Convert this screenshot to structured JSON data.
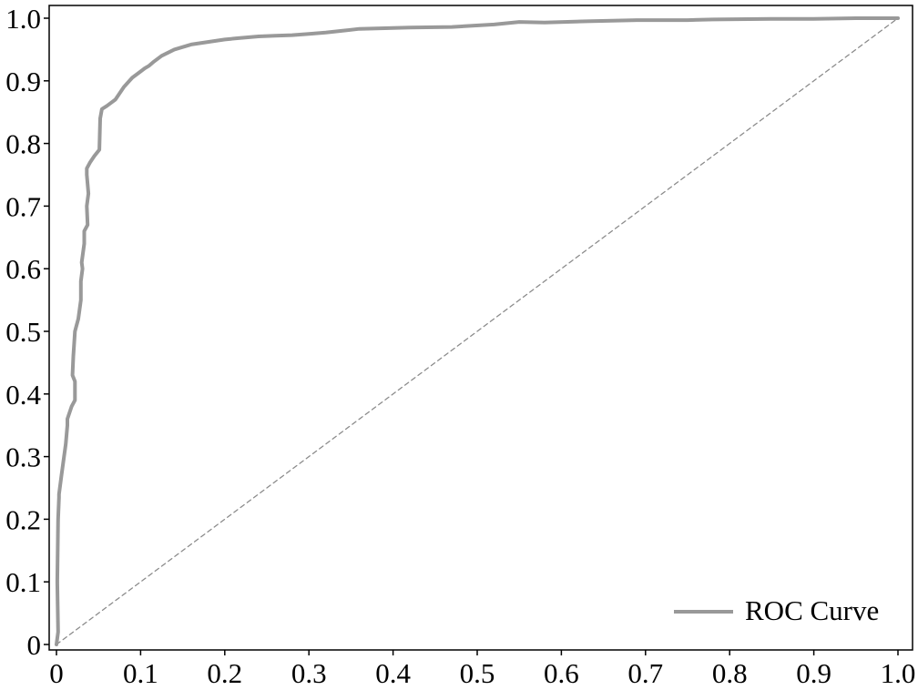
{
  "chart_data": {
    "type": "line",
    "title": "",
    "xlabel": "",
    "ylabel": "",
    "xlim": [
      0,
      1
    ],
    "ylim": [
      0,
      1
    ],
    "x_ticks": [
      {
        "value": 0.0,
        "label": "0"
      },
      {
        "value": 0.1,
        "label": "0.1"
      },
      {
        "value": 0.2,
        "label": "0.2"
      },
      {
        "value": 0.3,
        "label": "0.3"
      },
      {
        "value": 0.4,
        "label": "0.4"
      },
      {
        "value": 0.5,
        "label": "0.5"
      },
      {
        "value": 0.6,
        "label": "0.6"
      },
      {
        "value": 0.7,
        "label": "0.7"
      },
      {
        "value": 0.8,
        "label": "0.8"
      },
      {
        "value": 0.9,
        "label": "0.9"
      },
      {
        "value": 1.0,
        "label": "1.0"
      }
    ],
    "y_ticks": [
      {
        "value": 0.0,
        "label": "0"
      },
      {
        "value": 0.1,
        "label": "0.1"
      },
      {
        "value": 0.2,
        "label": "0.2"
      },
      {
        "value": 0.3,
        "label": "0.3"
      },
      {
        "value": 0.4,
        "label": "0.4"
      },
      {
        "value": 0.5,
        "label": "0.5"
      },
      {
        "value": 0.6,
        "label": "0.6"
      },
      {
        "value": 0.7,
        "label": "0.7"
      },
      {
        "value": 0.8,
        "label": "0.8"
      },
      {
        "value": 0.9,
        "label": "0.9"
      },
      {
        "value": 1.0,
        "label": "1.0"
      }
    ],
    "grid": false,
    "legend_position": "bottom-right",
    "series": [
      {
        "name": "ROC Curve",
        "color": "#999999",
        "style": "solid",
        "x": [
          0.0,
          0.002,
          0.001,
          0.002,
          0.003,
          0.003,
          0.006,
          0.011,
          0.013,
          0.013,
          0.018,
          0.022,
          0.022,
          0.019,
          0.02,
          0.022,
          0.026,
          0.029,
          0.029,
          0.031,
          0.03,
          0.033,
          0.033,
          0.037,
          0.036,
          0.038,
          0.036,
          0.036,
          0.04,
          0.045,
          0.051,
          0.052,
          0.054,
          0.06,
          0.07,
          0.08,
          0.09,
          0.1,
          0.105,
          0.11,
          0.115,
          0.125,
          0.14,
          0.16,
          0.18,
          0.2,
          0.215,
          0.24,
          0.26,
          0.28,
          0.3,
          0.32,
          0.34,
          0.36,
          0.39,
          0.42,
          0.47,
          0.52,
          0.55,
          0.58,
          0.63,
          0.69,
          0.75,
          0.78,
          0.85,
          0.9,
          0.95,
          1.0
        ],
        "y": [
          0.0,
          0.02,
          0.1,
          0.2,
          0.235,
          0.24,
          0.27,
          0.32,
          0.35,
          0.36,
          0.38,
          0.39,
          0.42,
          0.43,
          0.46,
          0.5,
          0.52,
          0.55,
          0.58,
          0.6,
          0.61,
          0.64,
          0.66,
          0.67,
          0.7,
          0.72,
          0.75,
          0.76,
          0.77,
          0.78,
          0.79,
          0.84,
          0.855,
          0.86,
          0.87,
          0.89,
          0.905,
          0.915,
          0.92,
          0.924,
          0.93,
          0.94,
          0.95,
          0.958,
          0.962,
          0.966,
          0.968,
          0.971,
          0.972,
          0.973,
          0.975,
          0.977,
          0.98,
          0.983,
          0.984,
          0.985,
          0.986,
          0.99,
          0.994,
          0.993,
          0.995,
          0.997,
          0.997,
          0.998,
          0.999,
          0.999,
          1.0,
          1.0
        ]
      },
      {
        "name": "",
        "color": "#8a8a8a",
        "style": "dashed",
        "x": [
          0,
          1
        ],
        "y": [
          0,
          1
        ]
      }
    ]
  }
}
